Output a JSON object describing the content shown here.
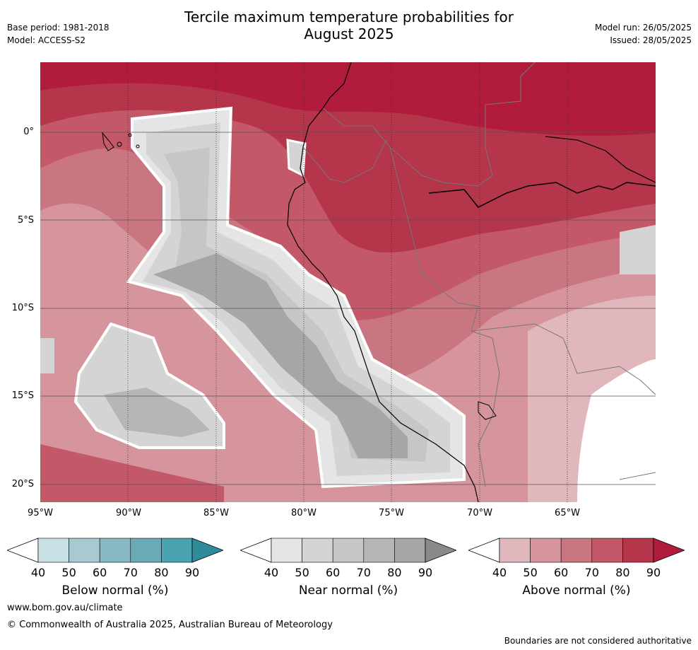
{
  "title_line1": "Tercile maximum temperature probabilities for",
  "title_line2": "August 2025",
  "meta_left": {
    "base_period": "Base period: 1981-2018",
    "model": "Model: ACCESS-S2"
  },
  "meta_right": {
    "model_run": "Model run: 26/05/2025",
    "issued": "Issued: 28/05/2025"
  },
  "map": {
    "lat_labels": [
      "0°",
      "5°S",
      "10°S",
      "15°S",
      "20°S"
    ],
    "lon_labels": [
      "95°W",
      "90°W",
      "85°W",
      "80°W",
      "75°W",
      "70°W",
      "65°W"
    ],
    "lat_range": [
      -21,
      4
    ],
    "lon_range": [
      -95,
      -60
    ]
  },
  "colorbars": [
    {
      "label": "Below normal (%)",
      "ticks": [
        "40",
        "50",
        "60",
        "70",
        "80",
        "90"
      ],
      "colors": [
        "#ffffff",
        "#c9e1e5",
        "#a7c9cf",
        "#88b8c3",
        "#6aaab6",
        "#4aa3b1",
        "#2f8a9a"
      ]
    },
    {
      "label": "Near normal (%)",
      "ticks": [
        "40",
        "50",
        "60",
        "70",
        "80",
        "90"
      ],
      "colors": [
        "#ffffff",
        "#e5e5e5",
        "#d4d4d4",
        "#c6c6c6",
        "#b6b6b6",
        "#a6a6a6",
        "#8a8a8a"
      ]
    },
    {
      "label": "Above normal (%)",
      "ticks": [
        "40",
        "50",
        "60",
        "70",
        "80",
        "90"
      ],
      "colors": [
        "#ffffff",
        "#e0b7bd",
        "#d6949c",
        "#ca7680",
        "#c35868",
        "#b5354a",
        "#b11c3c"
      ]
    }
  ],
  "footer": {
    "url": "www.bom.gov.au/climate",
    "copyright": "© Commonwealth of Australia 2025, Australian Bureau of Meteorology",
    "disclaimer": "Boundaries are not considered authoritative"
  }
}
